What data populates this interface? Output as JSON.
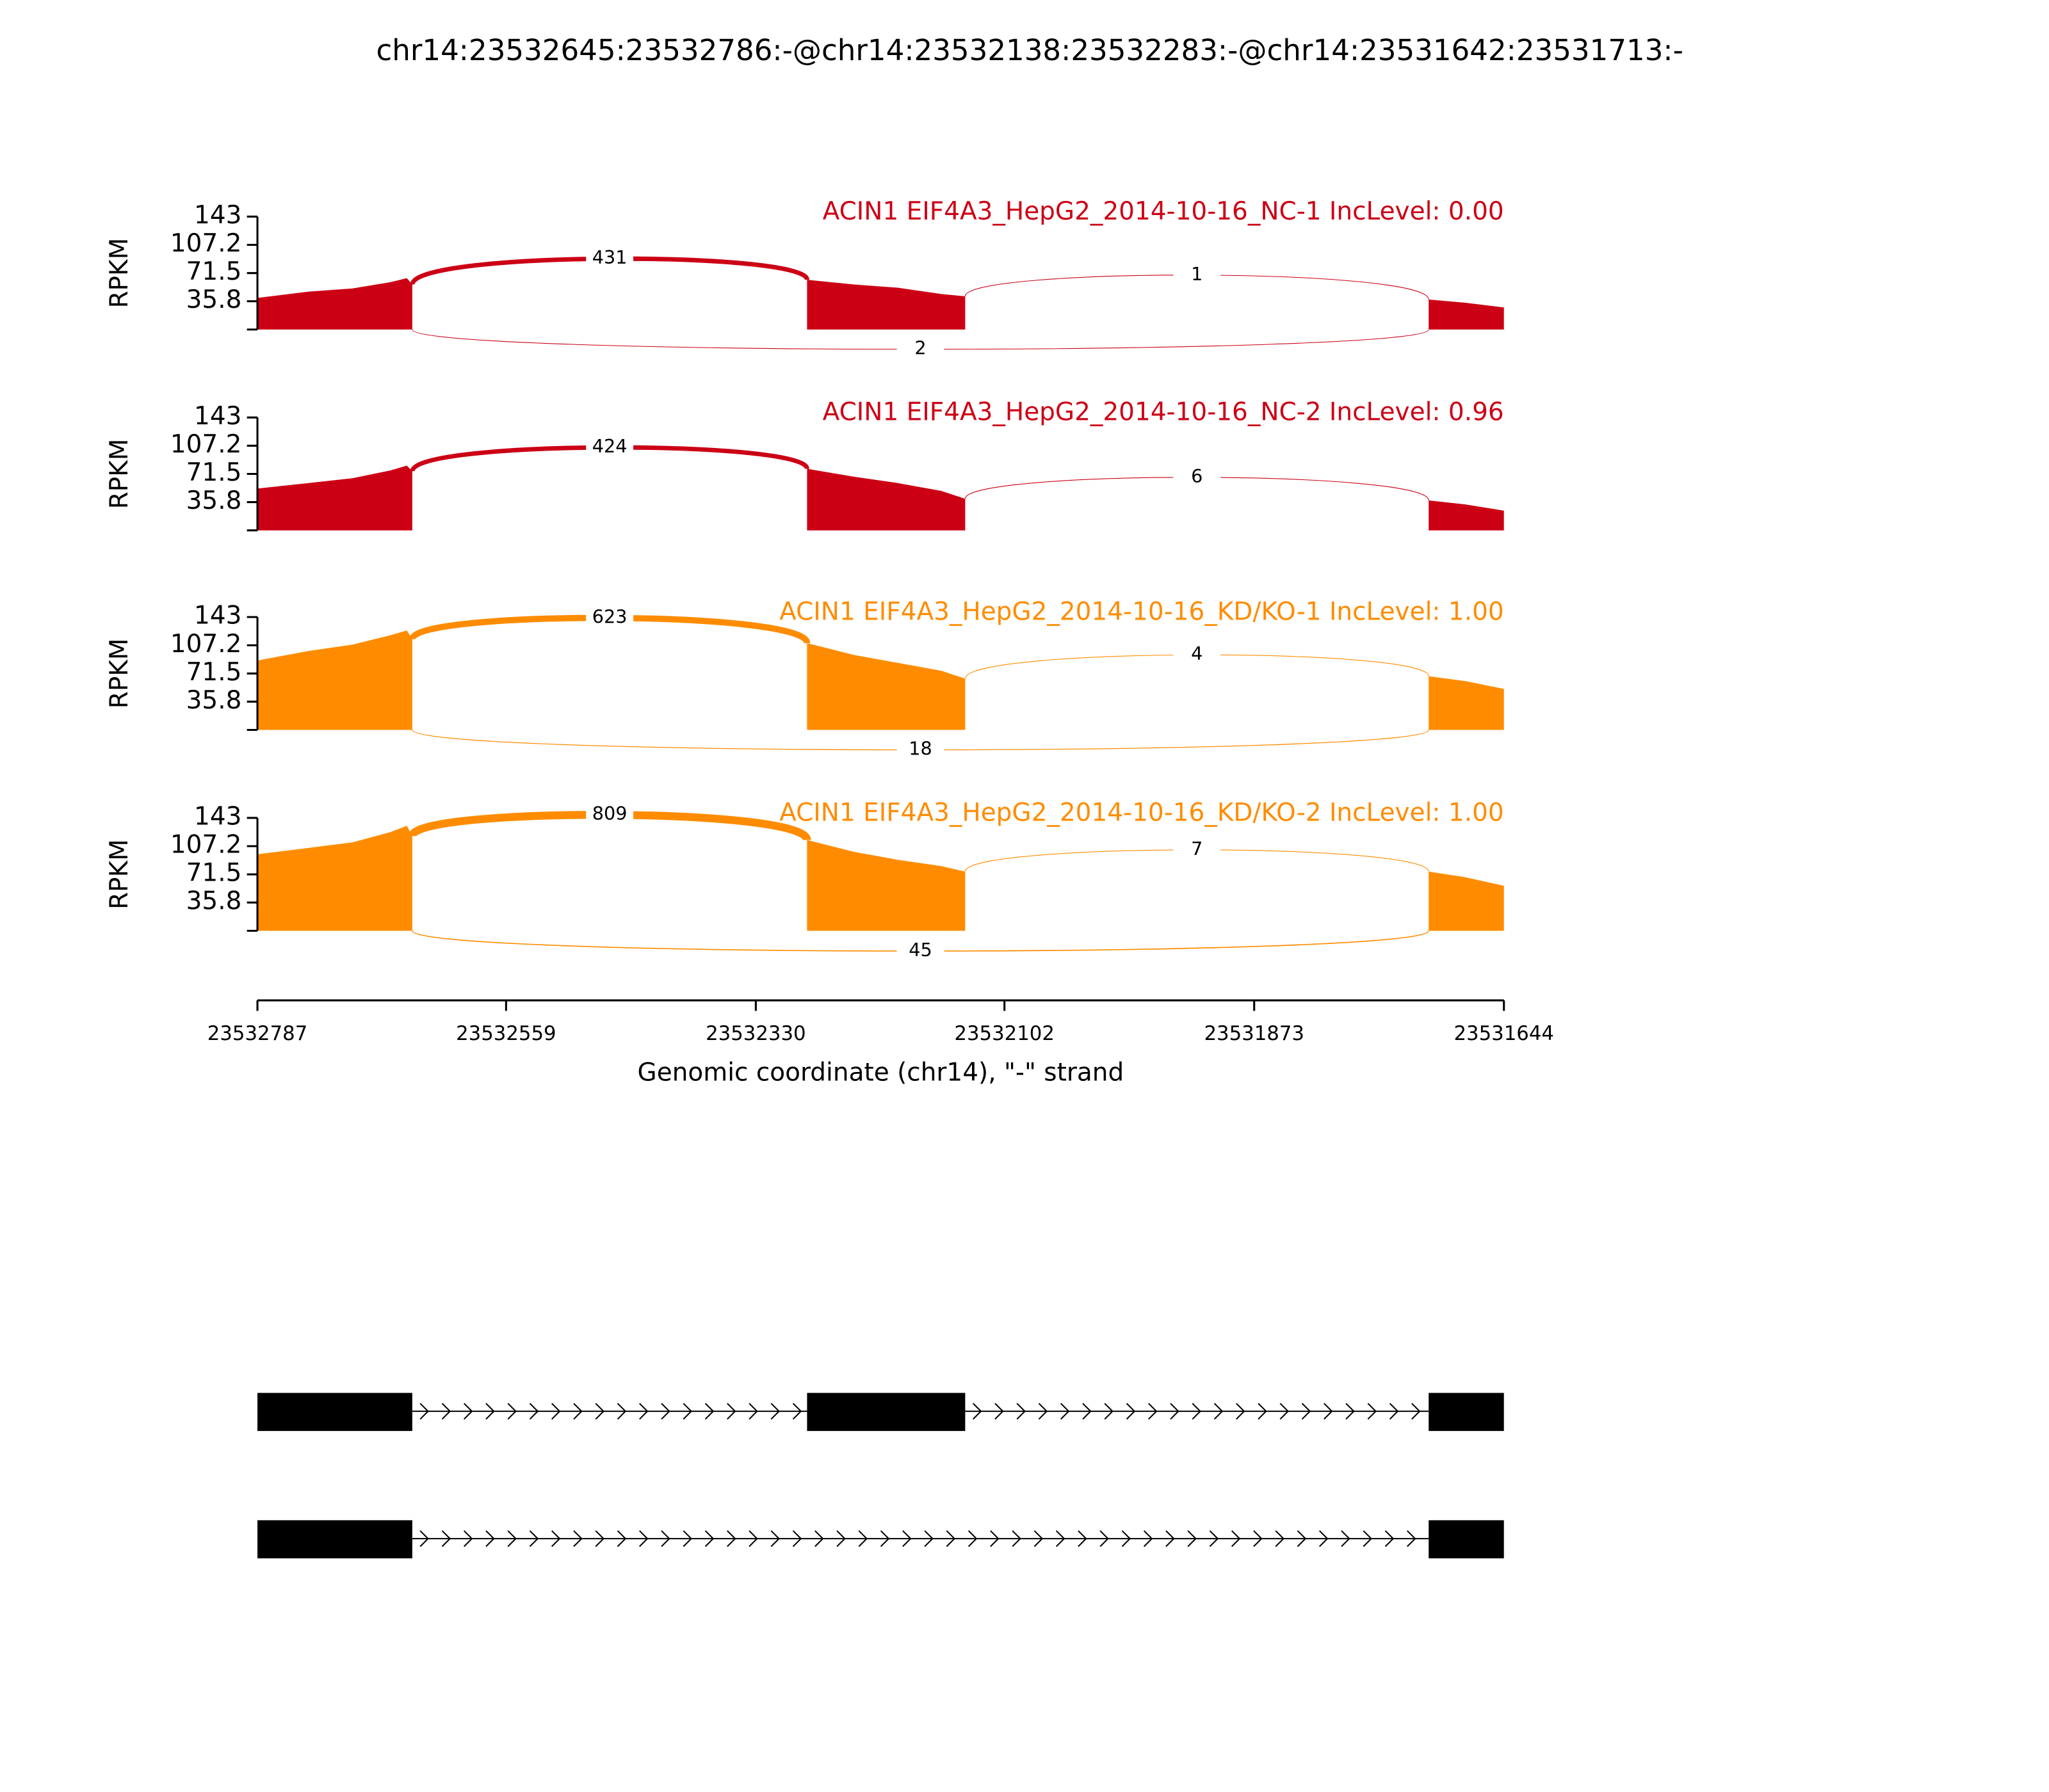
{
  "chart_data": {
    "type": "sashimi",
    "title": "chr14:23532645:23532786:-@chr14:23532138:23532283:-@chr14:23531642:23531713:-",
    "xlabel": "Genomic coordinate (chr14), \"-\" strand",
    "xlim": [
      23532787,
      23531644
    ],
    "xticks": [
      23532787,
      23532559,
      23532330,
      23532102,
      23531873,
      23531644
    ],
    "tracks": [
      {
        "label": "ACIN1 EIF4A3_HepG2_2014-10-16_NC-1 IncLevel: 0.00",
        "color": "#cc0015",
        "ylabel": "RPKM",
        "ylim": [
          0,
          143
        ],
        "yticks": [
          35.8,
          71.5,
          107.2,
          143
        ],
        "x": [
          23532787,
          23532740,
          23532700,
          23532665,
          23532650,
          23532645,
          23532450,
          23532283,
          23532240,
          23532200,
          23532160,
          23532138,
          23531900,
          23531713,
          23531680,
          23531644
        ],
        "values": [
          40,
          48,
          52,
          60,
          65,
          57,
          null,
          63,
          57,
          53,
          45,
          42,
          null,
          38,
          34,
          28
        ],
        "junctions": [
          {
            "start": 23532645,
            "end": 23532283,
            "count": 431,
            "side": "above"
          },
          {
            "start": 23532138,
            "end": 23531713,
            "count": 1,
            "side": "above"
          },
          {
            "start": 23532645,
            "end": 23531713,
            "count": 2,
            "side": "below"
          }
        ]
      },
      {
        "label": "ACIN1 EIF4A3_HepG2_2014-10-16_NC-2 IncLevel: 0.96",
        "color": "#cc0015",
        "ylabel": "RPKM",
        "ylim": [
          0,
          143
        ],
        "yticks": [
          35.8,
          71.5,
          107.2,
          143
        ],
        "x": [
          23532787,
          23532740,
          23532700,
          23532665,
          23532650,
          23532645,
          23532450,
          23532283,
          23532240,
          23532200,
          23532160,
          23532138,
          23531900,
          23531713,
          23531680,
          23531644
        ],
        "values": [
          53,
          60,
          66,
          76,
          82,
          75,
          null,
          78,
          68,
          60,
          50,
          40,
          null,
          38,
          33,
          25
        ],
        "junctions": [
          {
            "start": 23532645,
            "end": 23532283,
            "count": 424,
            "side": "above"
          },
          {
            "start": 23532138,
            "end": 23531713,
            "count": 6,
            "side": "above"
          }
        ]
      },
      {
        "label": "ACIN1 EIF4A3_HepG2_2014-10-16_KD/KO-1 IncLevel: 1.00",
        "color": "#ff8c00",
        "ylabel": "RPKM",
        "ylim": [
          0,
          143
        ],
        "yticks": [
          35.8,
          71.5,
          107.2,
          143
        ],
        "x": [
          23532787,
          23532740,
          23532700,
          23532665,
          23532650,
          23532645,
          23532450,
          23532283,
          23532240,
          23532200,
          23532160,
          23532138,
          23531900,
          23531713,
          23531680,
          23531644
        ],
        "values": [
          88,
          100,
          108,
          120,
          126,
          115,
          null,
          110,
          95,
          85,
          75,
          65,
          null,
          68,
          62,
          52
        ],
        "junctions": [
          {
            "start": 23532645,
            "end": 23532283,
            "count": 623,
            "side": "above"
          },
          {
            "start": 23532138,
            "end": 23531713,
            "count": 4,
            "side": "above"
          },
          {
            "start": 23532645,
            "end": 23531713,
            "count": 18,
            "side": "below"
          }
        ]
      },
      {
        "label": "ACIN1 EIF4A3_HepG2_2014-10-16_KD/KO-2 IncLevel: 1.00",
        "color": "#ff8c00",
        "ylabel": "RPKM",
        "ylim": [
          0,
          143
        ],
        "yticks": [
          35.8,
          71.5,
          107.2,
          143
        ],
        "x": [
          23532787,
          23532740,
          23532700,
          23532665,
          23532650,
          23532645,
          23532450,
          23532283,
          23532240,
          23532200,
          23532160,
          23532138,
          23531900,
          23531713,
          23531680,
          23531644
        ],
        "values": [
          97,
          105,
          112,
          125,
          133,
          120,
          null,
          115,
          100,
          90,
          82,
          75,
          null,
          75,
          68,
          57
        ],
        "junctions": [
          {
            "start": 23532645,
            "end": 23532283,
            "count": 809,
            "side": "above"
          },
          {
            "start": 23532138,
            "end": 23531713,
            "count": 7,
            "side": "above"
          },
          {
            "start": 23532645,
            "end": 23531713,
            "count": 45,
            "side": "below"
          }
        ]
      }
    ],
    "transcripts": [
      {
        "exons": [
          [
            23532787,
            23532645
          ],
          [
            23532283,
            23532138
          ],
          [
            23531713,
            23531644
          ]
        ]
      },
      {
        "exons": [
          [
            23532787,
            23532645
          ],
          [
            23531713,
            23531644
          ]
        ]
      }
    ]
  }
}
